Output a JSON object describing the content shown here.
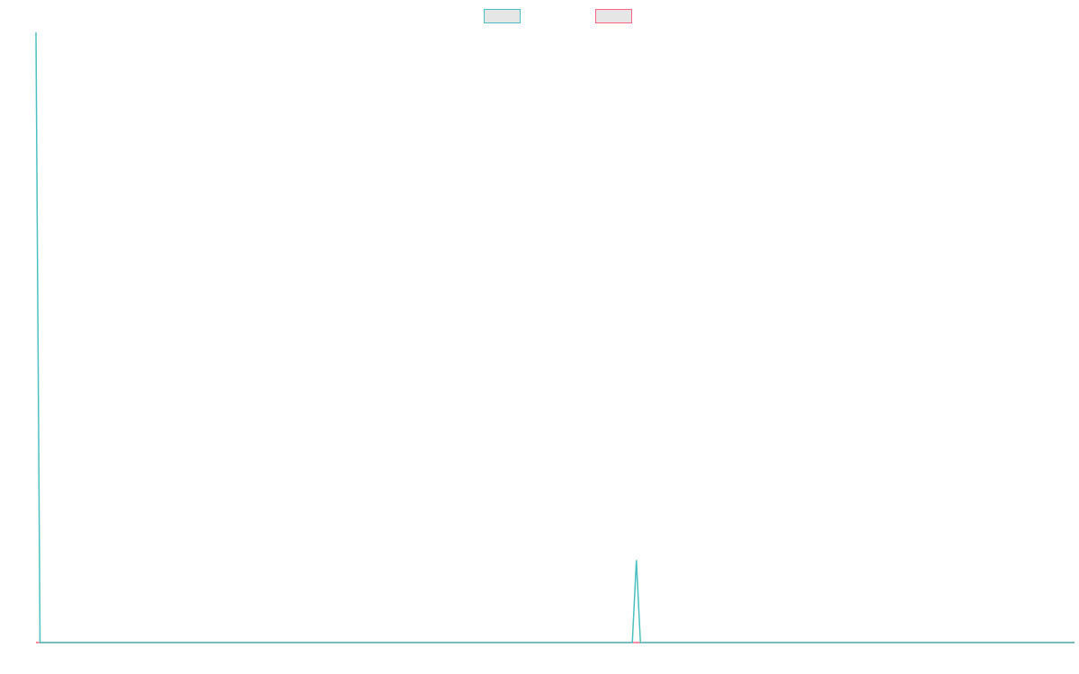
{
  "chart_data": {
    "type": "line",
    "x": [
      0,
      1,
      147,
      148,
      149,
      256
    ],
    "series": [
      {
        "color": "#4bc0c0",
        "values": [
          100,
          0,
          0,
          13.5,
          0,
          0
        ]
      },
      {
        "color": "#ff6384",
        "values": [
          0,
          0,
          0,
          0,
          0,
          0
        ]
      }
    ],
    "xlim": [
      0,
      256
    ],
    "ylim": [
      0,
      100
    ],
    "legend": "top"
  }
}
